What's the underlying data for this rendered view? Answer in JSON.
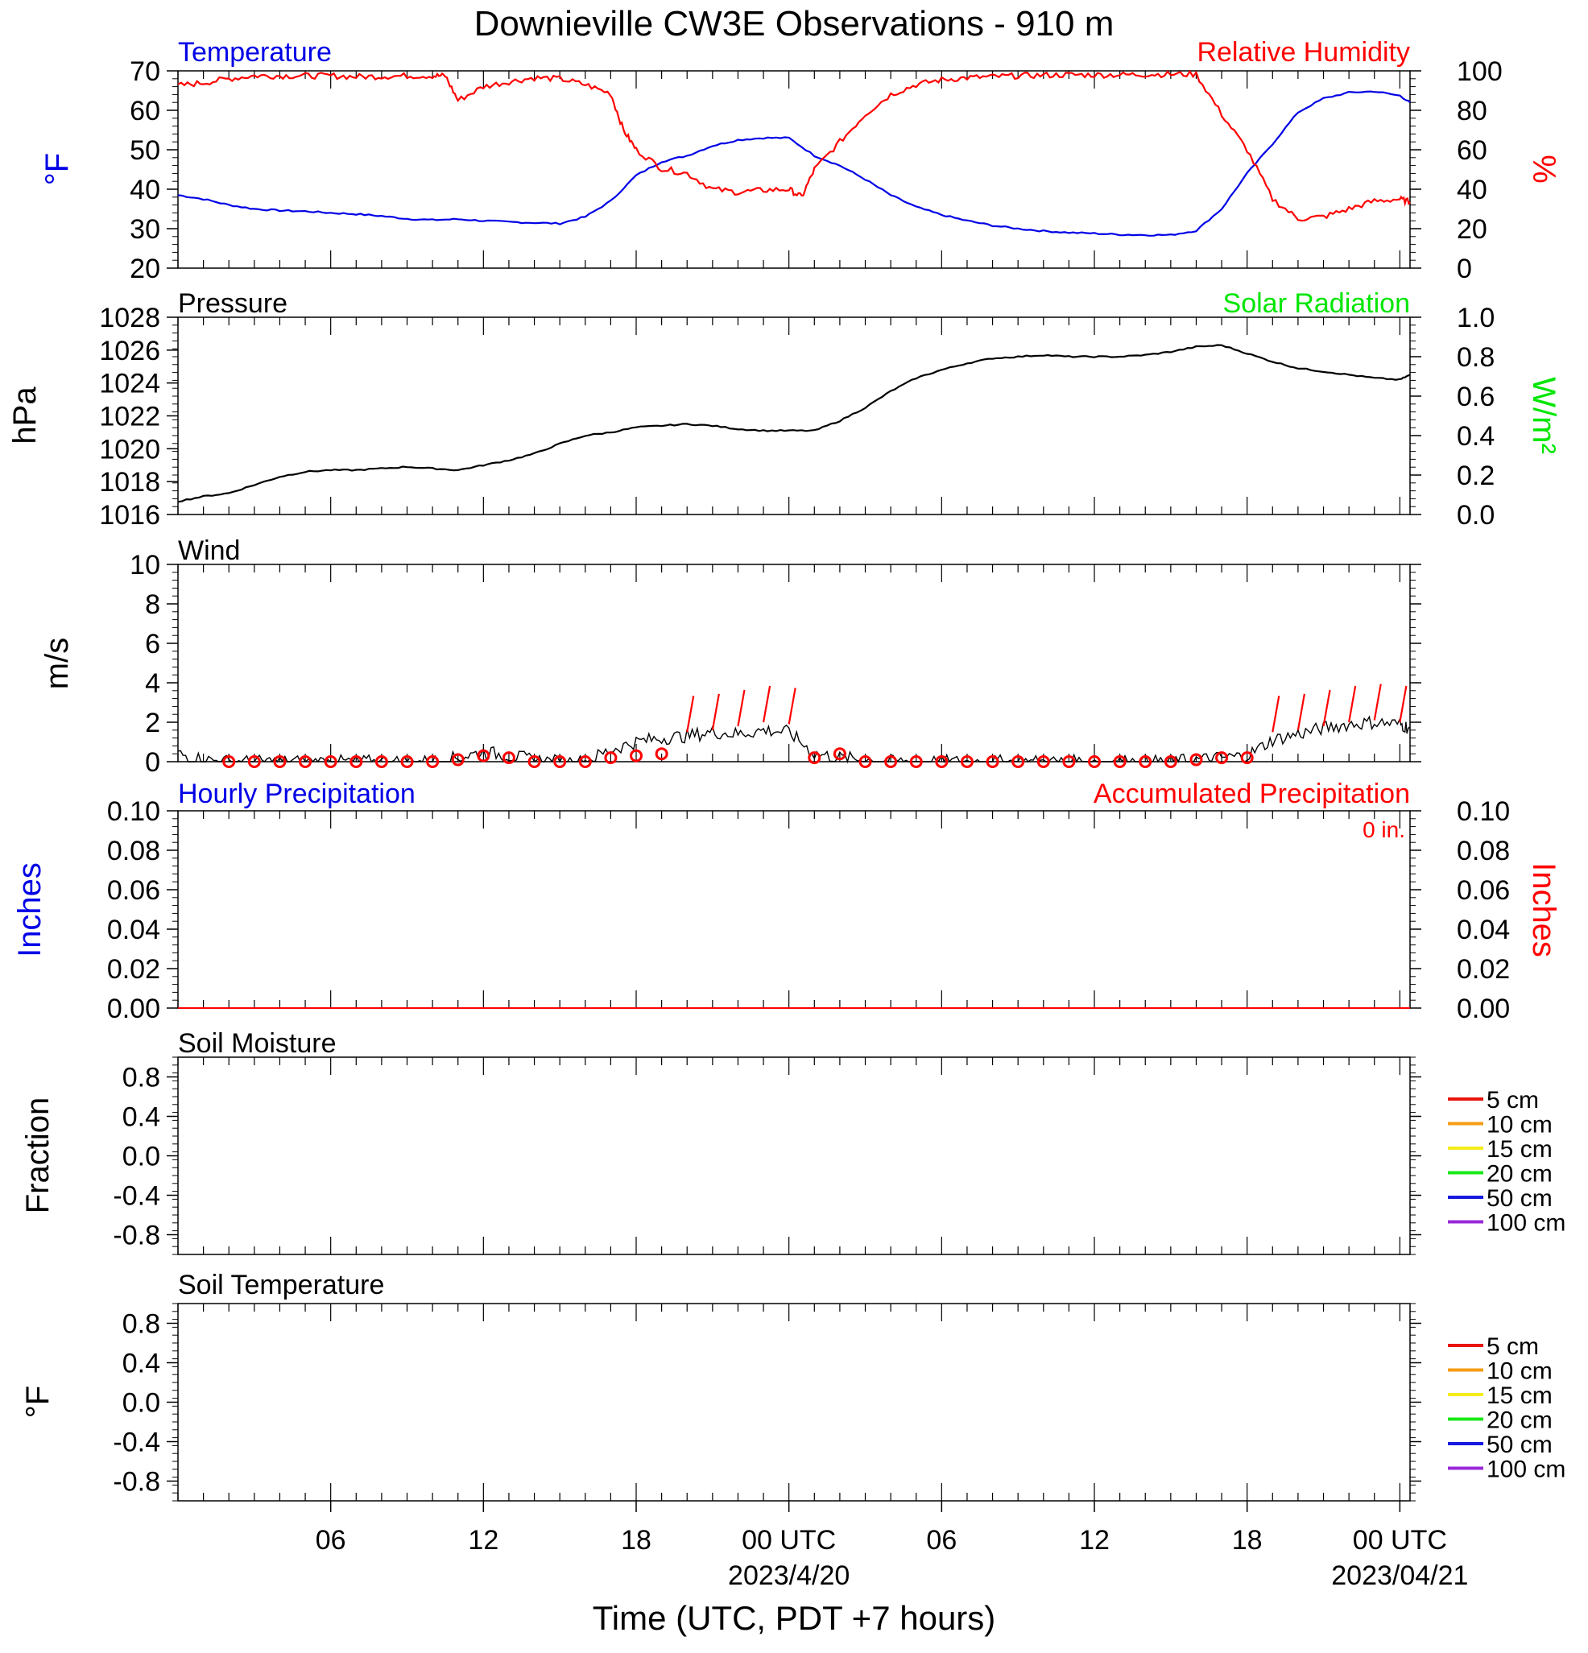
{
  "title": "Downieville CW3E Observations - 910 m",
  "x_axis": {
    "label": "Time (UTC, PDT +7 hours)",
    "ticks": [
      {
        "h": 6,
        "label": "06"
      },
      {
        "h": 12,
        "label": "12"
      },
      {
        "h": 18,
        "label": "18"
      },
      {
        "h": 24,
        "label": "00 UTC",
        "sublabel": "2023/4/20"
      },
      {
        "h": 30,
        "label": "06"
      },
      {
        "h": 36,
        "label": "12"
      },
      {
        "h": 42,
        "label": "18"
      },
      {
        "h": 48,
        "label": "00 UTC",
        "sublabel": "2023/04/21"
      }
    ],
    "range_hours": [
      0,
      48.4
    ]
  },
  "panels": {
    "temp_rh": {
      "left_title": "Temperature",
      "right_title": "Relative Humidity",
      "left_unit": "°F",
      "right_unit": "%",
      "left_ticks": [
        "20",
        "30",
        "40",
        "50",
        "60",
        "70"
      ],
      "right_ticks": [
        "0",
        "20",
        "40",
        "60",
        "80",
        "100"
      ]
    },
    "pressure": {
      "left_title": "Pressure",
      "right_title": "Solar Radiation",
      "left_unit": "hPa",
      "right_unit": "W/m²",
      "left_ticks": [
        "1016",
        "1018",
        "1020",
        "1022",
        "1024",
        "1026",
        "1028"
      ],
      "right_ticks": [
        "0.0",
        "0.2",
        "0.4",
        "0.6",
        "0.8",
        "1.0"
      ]
    },
    "wind": {
      "left_title": "Wind",
      "left_unit": "m/s",
      "left_ticks": [
        "0",
        "2",
        "4",
        "6",
        "8",
        "10"
      ]
    },
    "precip": {
      "left_title": "Hourly Precipitation",
      "right_title": "Accumulated Precipitation",
      "total_label": "0 in.",
      "left_unit": "Inches",
      "right_unit": "Inches",
      "left_ticks": [
        "0.00",
        "0.02",
        "0.04",
        "0.06",
        "0.08",
        "0.10"
      ],
      "right_ticks": [
        "0.00",
        "0.02",
        "0.04",
        "0.06",
        "0.08",
        "0.10"
      ]
    },
    "soil_moisture": {
      "left_title": "Soil Moisture",
      "left_unit": "Fraction",
      "left_ticks": [
        "-0.8",
        "-0.4",
        "0.0",
        "0.4",
        "0.8"
      ],
      "legend": [
        {
          "label": "5 cm",
          "color": "#e8140c"
        },
        {
          "label": "10 cm",
          "color": "#f59c14"
        },
        {
          "label": "15 cm",
          "color": "#f5ec1c"
        },
        {
          "label": "20 cm",
          "color": "#18e818"
        },
        {
          "label": "50 cm",
          "color": "#1818e0"
        },
        {
          "label": "100 cm",
          "color": "#9a28d8"
        }
      ]
    },
    "soil_temp": {
      "left_title": "Soil Temperature",
      "left_unit": "°F",
      "left_ticks": [
        "-0.8",
        "-0.4",
        "0.0",
        "0.4",
        "0.8"
      ],
      "legend": [
        {
          "label": "5 cm",
          "color": "#e8140c"
        },
        {
          "label": "10 cm",
          "color": "#f59c14"
        },
        {
          "label": "15 cm",
          "color": "#f5ec1c"
        },
        {
          "label": "20 cm",
          "color": "#18e818"
        },
        {
          "label": "50 cm",
          "color": "#1818e0"
        },
        {
          "label": "100 cm",
          "color": "#9a28d8"
        }
      ]
    }
  },
  "colors": {
    "temperature": "#0000e6",
    "humidity": "#ff0000",
    "pressure": "#000000",
    "solar": "#00e600",
    "wind_speed": "#000000",
    "wind_marker": "#ff0000",
    "precip_hourly": "#0000e6",
    "precip_accum": "#ff0000"
  },
  "chart_data": [
    {
      "type": "line",
      "title": "Temperature",
      "ylabel": "°F",
      "ylim": [
        20,
        70
      ],
      "series": [
        {
          "name": "Temperature",
          "x": [
            0,
            1,
            2,
            3,
            4,
            5,
            6,
            7,
            8,
            9,
            10,
            11,
            12,
            13,
            14,
            15,
            16,
            17,
            18,
            19,
            20,
            21,
            22,
            23,
            24,
            25,
            26,
            27,
            28,
            29,
            30,
            31,
            32,
            33,
            34,
            35,
            36,
            37,
            38,
            39,
            40,
            41,
            42,
            43,
            44,
            45,
            46,
            47,
            48,
            48.4
          ],
          "y": [
            38.5,
            37.5,
            36.0,
            35.0,
            34.6,
            34.4,
            34.0,
            33.7,
            33.2,
            32.5,
            32.2,
            32.4,
            32.0,
            31.7,
            31.5,
            31.3,
            33.0,
            37.0,
            43.5,
            47.0,
            48.5,
            51.0,
            52.5,
            53.0,
            53.0,
            48.5,
            46.0,
            42.5,
            38.5,
            35.5,
            33.5,
            32.0,
            30.8,
            30.0,
            29.4,
            29.0,
            28.8,
            28.5,
            28.4,
            28.4,
            29.5,
            35.0,
            44.0,
            51.5,
            59.5,
            63.0,
            64.5,
            64.8,
            63.7,
            62.0
          ]
        }
      ]
    },
    {
      "type": "line",
      "title": "Relative Humidity",
      "ylabel": "%",
      "ylim": [
        0,
        100
      ],
      "series": [
        {
          "name": "Relative Humidity",
          "x": [
            0,
            1,
            2,
            3,
            4,
            5,
            6,
            7,
            8,
            9,
            10,
            10.5,
            11,
            12,
            13,
            14,
            15,
            16,
            17,
            17.5,
            18,
            19,
            20,
            21,
            22,
            23,
            24,
            24.5,
            25,
            26,
            27,
            28,
            29,
            30,
            31,
            32,
            33,
            34,
            35,
            36,
            37,
            38,
            39,
            40,
            41,
            42,
            43,
            44,
            45,
            46,
            47,
            48,
            48.4
          ],
          "y": [
            92.5,
            94.0,
            96.0,
            97.5,
            97.5,
            97.5,
            97.5,
            97.0,
            97.2,
            97.5,
            97.5,
            97.5,
            85.0,
            92.0,
            94.5,
            96.5,
            96.0,
            93.0,
            88.5,
            70.0,
            60.0,
            50.5,
            48.0,
            40.0,
            38.5,
            39.5,
            40.0,
            36.0,
            50.0,
            64.0,
            78.0,
            88.0,
            93.0,
            95.5,
            96.5,
            97.0,
            97.5,
            97.8,
            98.0,
            98.0,
            98.0,
            98.2,
            98.3,
            98.3,
            78.0,
            60.0,
            35.0,
            25.0,
            26.0,
            30.0,
            34.0,
            35.0,
            33.5
          ]
        }
      ]
    },
    {
      "type": "line",
      "title": "Pressure",
      "ylabel": "hPa",
      "ylim": [
        1016,
        1028
      ],
      "series": [
        {
          "name": "Pressure",
          "x": [
            0,
            1,
            2,
            3,
            4,
            5,
            6,
            7,
            8,
            9,
            10,
            11,
            12,
            13,
            14,
            15,
            16,
            17,
            18,
            19,
            20,
            21,
            22,
            23,
            24,
            25,
            26,
            27,
            28,
            29,
            30,
            31,
            32,
            33,
            34,
            35,
            36,
            37,
            38,
            39,
            40,
            41,
            42,
            43,
            44,
            45,
            46,
            47,
            48,
            48.4
          ],
          "y": [
            1016.8,
            1017.1,
            1017.3,
            1017.8,
            1018.3,
            1018.6,
            1018.7,
            1018.7,
            1018.8,
            1018.9,
            1018.8,
            1018.7,
            1019.0,
            1019.3,
            1019.7,
            1020.3,
            1020.8,
            1021.0,
            1021.3,
            1021.4,
            1021.5,
            1021.4,
            1021.2,
            1021.1,
            1021.1,
            1021.1,
            1021.7,
            1022.5,
            1023.5,
            1024.3,
            1024.8,
            1025.2,
            1025.5,
            1025.6,
            1025.7,
            1025.6,
            1025.6,
            1025.6,
            1025.7,
            1025.9,
            1026.2,
            1026.3,
            1025.8,
            1025.3,
            1024.9,
            1024.7,
            1024.5,
            1024.3,
            1024.2,
            1024.5
          ]
        }
      ]
    },
    {
      "type": "line",
      "title": "Wind",
      "ylabel": "m/s",
      "ylim": [
        0,
        10
      ],
      "series": [
        {
          "name": "Wind speed",
          "x": [
            0,
            1,
            2,
            3,
            4,
            5,
            6,
            7,
            8,
            9,
            10,
            11,
            12,
            13,
            14,
            15,
            16,
            17,
            18,
            19,
            20,
            21,
            22,
            23,
            24,
            25,
            26,
            27,
            28,
            29,
            30,
            31,
            32,
            33,
            34,
            35,
            36,
            37,
            38,
            39,
            40,
            41,
            42,
            43,
            44,
            45,
            46,
            47,
            48,
            48.4
          ],
          "y": [
            0.4,
            0.1,
            0.0,
            0.0,
            0.0,
            0.0,
            0.0,
            0.0,
            0.0,
            0.0,
            0.0,
            0.2,
            0.5,
            0.3,
            0.1,
            0.0,
            0.0,
            0.6,
            1.0,
            1.2,
            1.3,
            1.5,
            1.4,
            1.6,
            1.5,
            0.4,
            0.2,
            0.1,
            0.0,
            0.0,
            0.0,
            0.0,
            0.0,
            0.0,
            0.0,
            0.0,
            0.0,
            0.0,
            0.0,
            0.0,
            0.1,
            0.2,
            0.3,
            1.1,
            1.4,
            1.7,
            1.9,
            2.0,
            1.9,
            1.7
          ]
        },
        {
          "name": "Hourly wind",
          "x": [
            2,
            3,
            4,
            5,
            6,
            7,
            8,
            9,
            10,
            11,
            12,
            13,
            14,
            15,
            16,
            17,
            18,
            19,
            20,
            21,
            22,
            23,
            24,
            25,
            26,
            27,
            28,
            29,
            30,
            31,
            32,
            33,
            34,
            35,
            36,
            37,
            38,
            39,
            40,
            41,
            42,
            43,
            44,
            45,
            46,
            47,
            48
          ],
          "y": [
            0.0,
            0.0,
            0.0,
            0.0,
            0.0,
            0.0,
            0.0,
            0.0,
            0.0,
            0.1,
            0.3,
            0.2,
            0.0,
            0.0,
            0.0,
            0.2,
            0.3,
            0.4,
            1.5,
            1.6,
            1.8,
            2.0,
            1.9,
            0.2,
            0.4,
            0.0,
            0.0,
            0.0,
            0.0,
            0.0,
            0.0,
            0.0,
            0.0,
            0.0,
            0.0,
            0.0,
            0.0,
            0.0,
            0.1,
            0.2,
            0.2,
            1.5,
            1.6,
            1.8,
            2.0,
            2.1,
            2.0
          ]
        }
      ]
    },
    {
      "type": "line",
      "title": "Hourly Precipitation",
      "ylabel": "Inches",
      "ylim": [
        0,
        0.1
      ],
      "series": [
        {
          "name": "Hourly Precipitation",
          "x": [
            0,
            48.4
          ],
          "y": [
            0,
            0
          ]
        },
        {
          "name": "Accumulated Precipitation",
          "x": [
            0,
            48.4
          ],
          "y": [
            0,
            0
          ]
        }
      ]
    },
    {
      "type": "line",
      "title": "Soil Moisture",
      "ylabel": "Fraction",
      "ylim": [
        -1,
        1
      ],
      "series": []
    },
    {
      "type": "line",
      "title": "Soil Temperature",
      "ylabel": "°F",
      "ylim": [
        -1,
        1
      ],
      "series": []
    }
  ]
}
